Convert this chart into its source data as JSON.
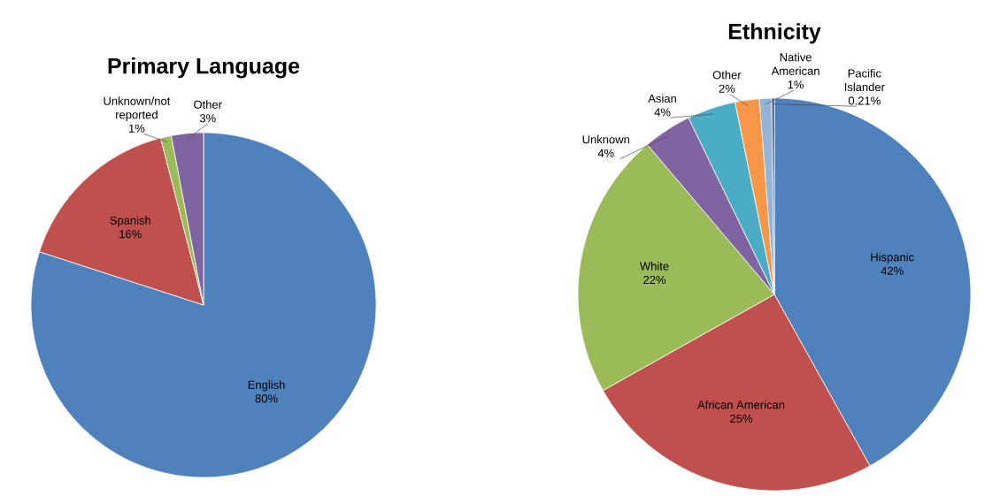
{
  "chart_data": [
    {
      "type": "pie",
      "title": "Primary Language",
      "categories": [
        "English",
        "Spanish",
        "Unknown/not reported",
        "Other"
      ],
      "values": [
        80,
        16,
        1,
        3
      ],
      "value_labels": [
        "80%",
        "16%",
        "1%",
        "3%"
      ],
      "colors": [
        "#4f81bd",
        "#c0504d",
        "#9bbb59",
        "#8064a2"
      ]
    },
    {
      "type": "pie",
      "title": "Ethnicity",
      "categories": [
        "Hispanic",
        "African American",
        "White",
        "Unknown",
        "Asian",
        "Other",
        "Native American",
        "Pacific Islander"
      ],
      "values": [
        42,
        25,
        22,
        4,
        4,
        2,
        1,
        0.21
      ],
      "value_labels": [
        "42%",
        "25%",
        "22%",
        "4%",
        "4%",
        "2%",
        "1%",
        "0.21%"
      ],
      "colors": [
        "#4f81bd",
        "#c0504d",
        "#9bbb59",
        "#8064a2",
        "#4bacc6",
        "#f79646",
        "#95b3d7",
        "#2c4d75"
      ]
    }
  ]
}
